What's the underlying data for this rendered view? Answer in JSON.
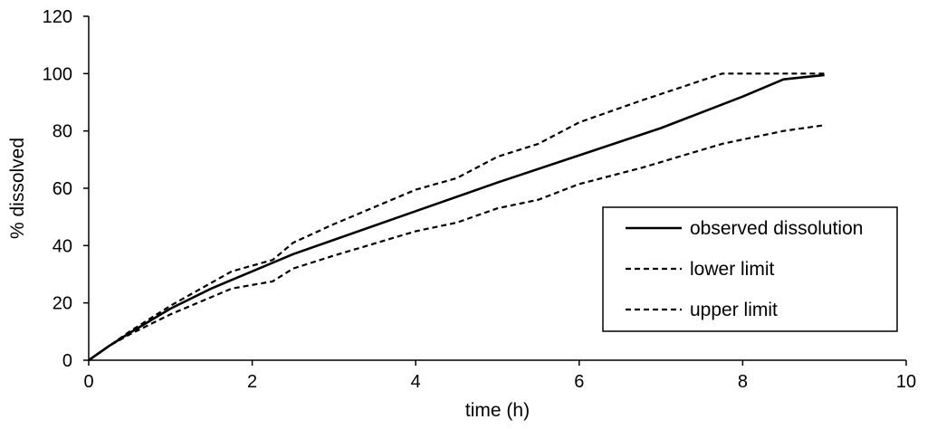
{
  "chart_data": {
    "type": "line",
    "title": "",
    "xlabel": "time (h)",
    "ylabel": "% dissolved",
    "xlim": [
      0,
      10
    ],
    "ylim": [
      0,
      120
    ],
    "xticks": [
      0,
      2,
      4,
      6,
      8,
      10
    ],
    "yticks": [
      0,
      20,
      40,
      60,
      80,
      100,
      120
    ],
    "grid": false,
    "legend_position": "right",
    "series": [
      {
        "name": "observed dissolution",
        "style": "solid",
        "color": "#000000",
        "x": [
          0,
          0.25,
          0.5,
          1,
          1.5,
          2,
          2.5,
          3,
          4,
          5,
          6,
          7,
          8,
          8.5,
          9
        ],
        "y": [
          0,
          5,
          9.5,
          18,
          25,
          31,
          37,
          42,
          52,
          62,
          71.5,
          81,
          92,
          98,
          99.5
        ]
      },
      {
        "name": "lower limit",
        "style": "dashed",
        "color": "#000000",
        "x": [
          0,
          0.25,
          0.5,
          1,
          1.75,
          2.25,
          2.5,
          3,
          4,
          4.5,
          5,
          5.5,
          6,
          6.75,
          7.75,
          8.5,
          9
        ],
        "y": [
          0,
          5,
          9,
          16,
          25,
          27.5,
          32,
          36.5,
          45,
          48,
          53,
          56,
          61.5,
          67,
          75.5,
          80,
          82
        ]
      },
      {
        "name": "upper limit",
        "style": "dashed",
        "color": "#000000",
        "x": [
          0,
          0.25,
          0.5,
          1,
          1.75,
          2.25,
          2.5,
          3,
          4,
          4.5,
          5,
          5.5,
          6,
          6.75,
          7.75,
          8.5,
          9
        ],
        "y": [
          0,
          5,
          10,
          19,
          31,
          35,
          41,
          47.5,
          59.5,
          63.5,
          71,
          75.5,
          83,
          90.5,
          100,
          100,
          100
        ]
      }
    ]
  }
}
